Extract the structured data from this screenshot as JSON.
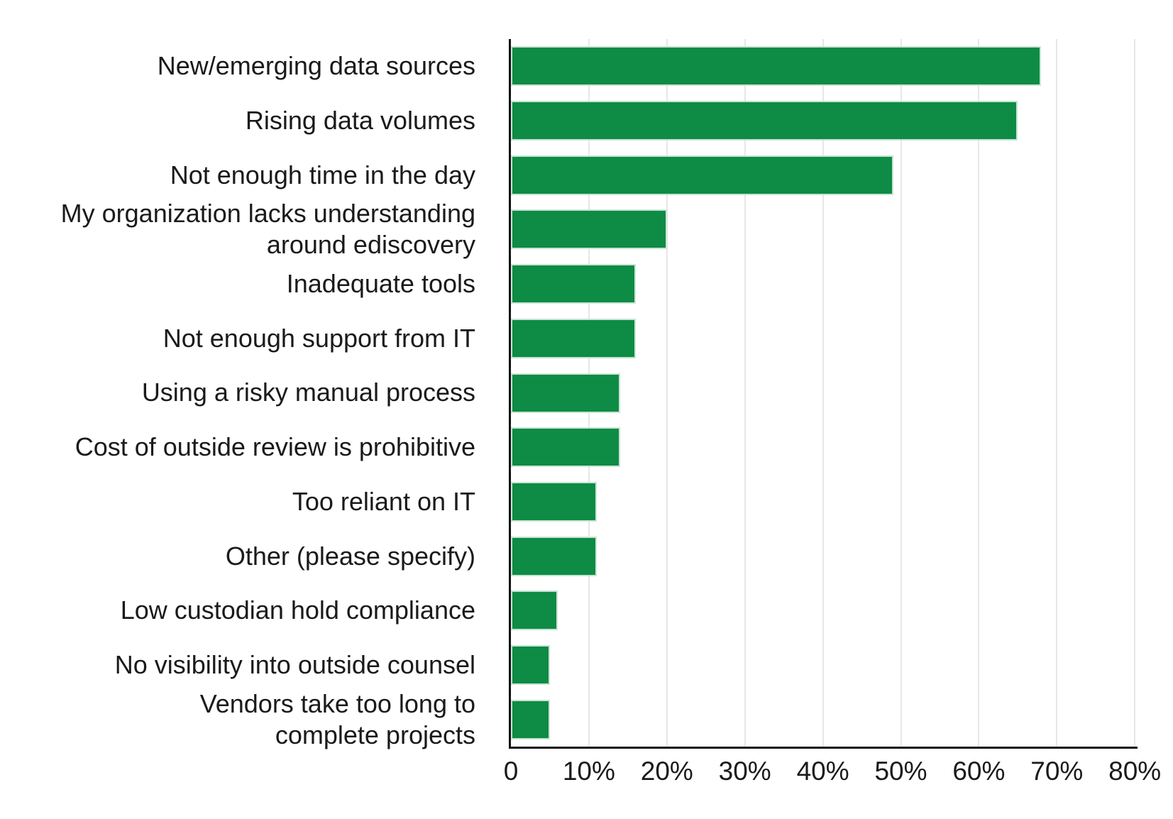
{
  "chart_data": {
    "type": "bar",
    "orientation": "horizontal",
    "categories": [
      "New/emerging data sources",
      "Rising data volumes",
      "Not enough time in the day",
      "My organization lacks understanding\naround ediscovery",
      "Inadequate tools",
      "Not enough support from IT",
      "Using a risky manual process",
      "Cost of outside review is prohibitive",
      "Too reliant on IT",
      "Other (please specify)",
      "Low custodian hold compliance",
      "No visibility into outside counsel",
      "Vendors take too long to\ncomplete projects"
    ],
    "values": [
      68,
      65,
      49,
      20,
      16,
      16,
      14,
      14,
      11,
      11,
      6,
      5,
      5
    ],
    "unit": "%",
    "xlim": [
      0,
      80
    ],
    "x_ticks": [
      {
        "value": 0,
        "label": "0"
      },
      {
        "value": 10,
        "label": "10%"
      },
      {
        "value": 20,
        "label": "20%"
      },
      {
        "value": 30,
        "label": "30%"
      },
      {
        "value": 40,
        "label": "40%"
      },
      {
        "value": 50,
        "label": "50%"
      },
      {
        "value": 60,
        "label": "60%"
      },
      {
        "value": 70,
        "label": "70%"
      },
      {
        "value": 80,
        "label": "80%"
      }
    ],
    "grid": "vertical-light",
    "legend": "none",
    "colors": {
      "bar_fill": "#0e8b45",
      "bar_edge": "#c9e4d4",
      "gridline": "#e7e7e7",
      "axis": "#111111",
      "text": "#1a1a1a",
      "background": "#ffffff"
    }
  }
}
